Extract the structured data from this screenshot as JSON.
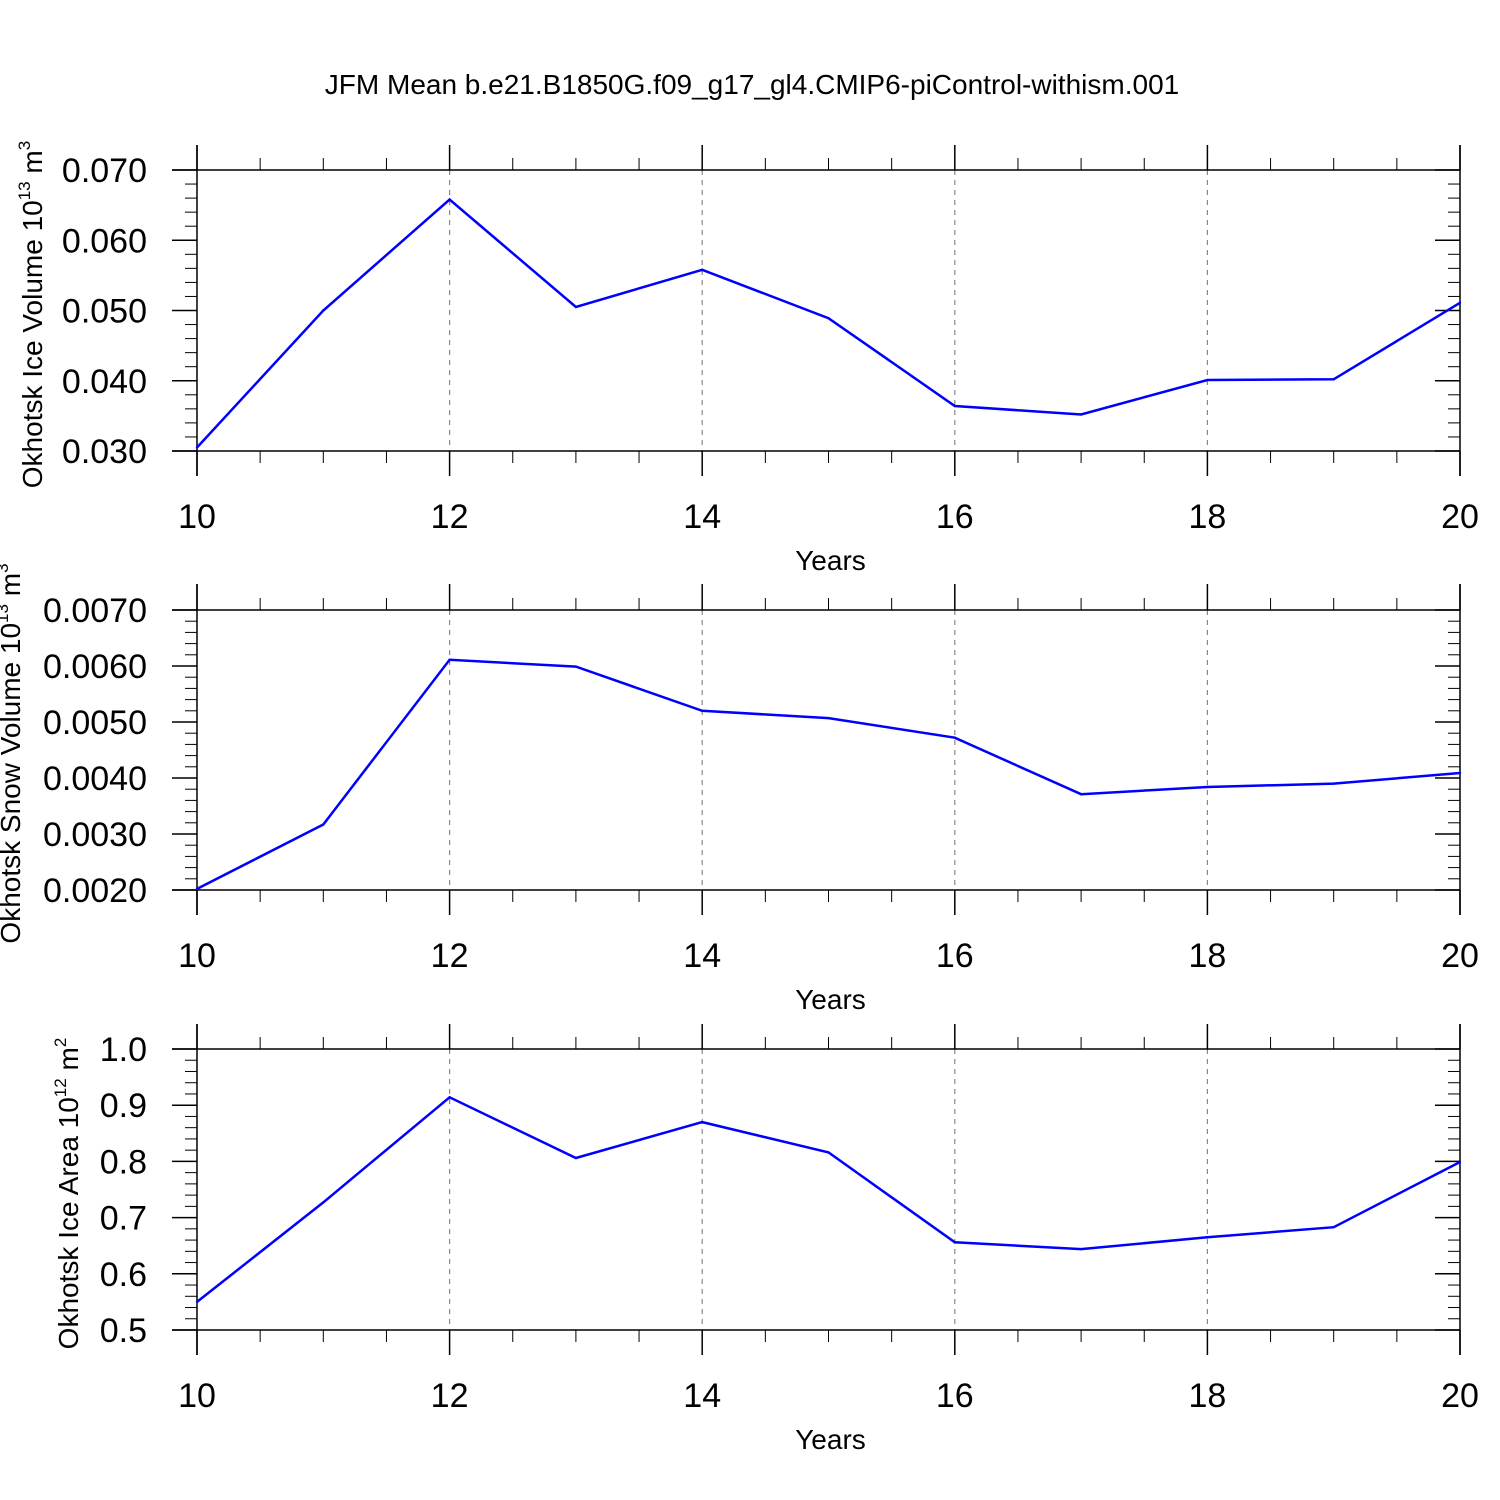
{
  "figure": {
    "title": "JFM Mean b.e21.B1850G.f09_g17_gl4.CMIP6-piControl-withism.001",
    "line_color": "#0000ff",
    "grid_color": "#888888"
  },
  "chart_data": [
    {
      "type": "line",
      "xlabel": "Years",
      "ylabel_main": "Okhotsk Ice Volume 10",
      "ylabel_exp": "13",
      "ylabel_unit": "m",
      "ylabel_unit_exp": "3",
      "xlim": [
        10,
        20
      ],
      "ylim": [
        0.03,
        0.07
      ],
      "xticks": [
        10,
        12,
        14,
        16,
        18,
        20
      ],
      "xtick_labels": [
        "10",
        "12",
        "14",
        "16",
        "18",
        "20"
      ],
      "yticks": [
        0.03,
        0.04,
        0.05,
        0.06,
        0.07
      ],
      "ytick_labels": [
        "0.030",
        "0.040",
        "0.050",
        "0.060",
        "0.070"
      ],
      "x_minor_step": 0.5,
      "y_minor_step": 0.002,
      "x_grid_dashed": [
        12,
        14,
        16,
        18
      ],
      "series": [
        {
          "x": [
            10,
            11,
            12,
            13,
            14,
            15,
            16,
            17,
            18,
            19,
            20
          ],
          "values": [
            0.0305,
            0.05,
            0.0658,
            0.0505,
            0.0558,
            0.0489,
            0.0364,
            0.0352,
            0.0401,
            0.0402,
            0.0511
          ]
        }
      ]
    },
    {
      "type": "line",
      "xlabel": "Years",
      "ylabel_main": "Okhotsk Snow Volume 10",
      "ylabel_exp": "13",
      "ylabel_unit": "m",
      "ylabel_unit_exp": "3",
      "xlim": [
        10,
        20
      ],
      "ylim": [
        0.002,
        0.007
      ],
      "xticks": [
        10,
        12,
        14,
        16,
        18,
        20
      ],
      "xtick_labels": [
        "10",
        "12",
        "14",
        "16",
        "18",
        "20"
      ],
      "yticks": [
        0.002,
        0.003,
        0.004,
        0.005,
        0.006,
        0.007
      ],
      "ytick_labels": [
        "0.0020",
        "0.0030",
        "0.0040",
        "0.0050",
        "0.0060",
        "0.0070"
      ],
      "x_minor_step": 0.5,
      "y_minor_step": 0.0002,
      "x_grid_dashed": [
        12,
        14,
        16,
        18
      ],
      "series": [
        {
          "x": [
            10,
            11,
            12,
            13,
            14,
            15,
            16,
            17,
            18,
            19,
            20
          ],
          "values": [
            0.00202,
            0.00317,
            0.00611,
            0.00599,
            0.0052,
            0.00507,
            0.00472,
            0.00371,
            0.00384,
            0.0039,
            0.00409
          ]
        }
      ]
    },
    {
      "type": "line",
      "xlabel": "Years",
      "ylabel_main": "Okhotsk Ice Area 10",
      "ylabel_exp": "12",
      "ylabel_unit": "m",
      "ylabel_unit_exp": "2",
      "xlim": [
        10,
        20
      ],
      "ylim": [
        0.5,
        1.0
      ],
      "xticks": [
        10,
        12,
        14,
        16,
        18,
        20
      ],
      "xtick_labels": [
        "10",
        "12",
        "14",
        "16",
        "18",
        "20"
      ],
      "yticks": [
        0.5,
        0.6,
        0.7,
        0.8,
        0.9,
        1.0
      ],
      "ytick_labels": [
        "0.5",
        "0.6",
        "0.7",
        "0.8",
        "0.9",
        "1.0"
      ],
      "x_minor_step": 0.5,
      "y_minor_step": 0.02,
      "x_grid_dashed": [
        12,
        14,
        16,
        18
      ],
      "series": [
        {
          "x": [
            10,
            11,
            12,
            13,
            14,
            15,
            16,
            17,
            18,
            19,
            20
          ],
          "values": [
            0.55,
            0.727,
            0.914,
            0.806,
            0.87,
            0.816,
            0.656,
            0.644,
            0.665,
            0.683,
            0.799
          ]
        }
      ]
    }
  ]
}
